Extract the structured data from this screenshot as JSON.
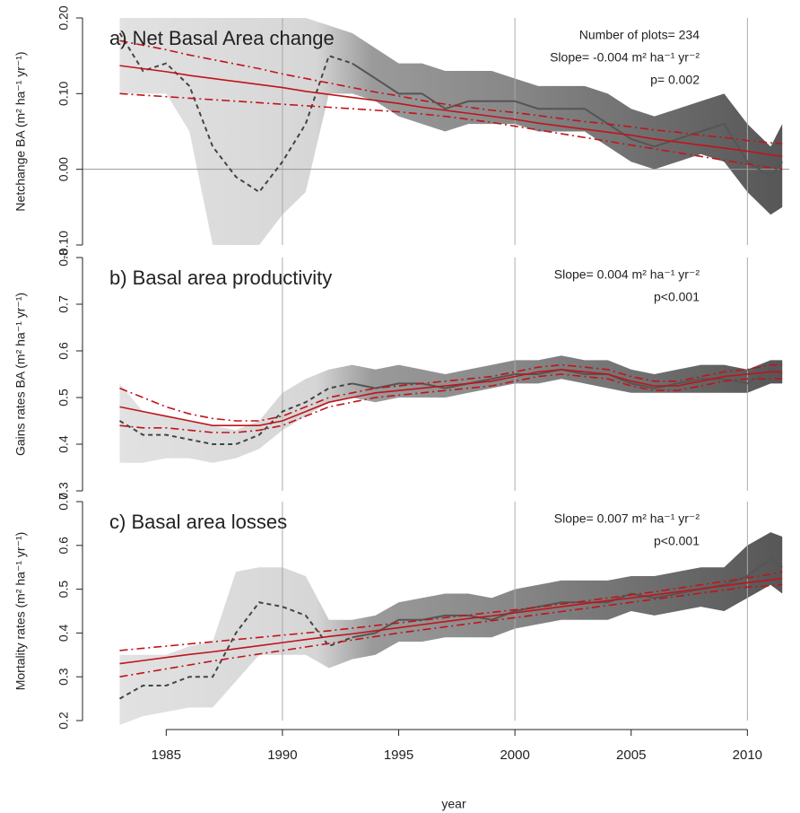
{
  "chart_data": [
    {
      "type": "line",
      "title": "a) Net Basal Area change",
      "ylabel": "Netchange BA (m² ha⁻¹ yr⁻¹)",
      "annotations": [
        "Number of plots= 234",
        "Slope= -0.004 m² ha⁻¹ yr⁻²",
        "p= 0.002"
      ],
      "x": [
        1983,
        1984,
        1985,
        1986,
        1987,
        1988,
        1989,
        1990,
        1991,
        1992,
        1993,
        1994,
        1995,
        1996,
        1997,
        1998,
        1999,
        2000,
        2001,
        2002,
        2003,
        2004,
        2005,
        2006,
        2007,
        2008,
        2009,
        2010,
        2011,
        2011.5
      ],
      "xlim": [
        1981.4,
        2011.8
      ],
      "ylim": [
        -0.1,
        0.2
      ],
      "yticks": [
        {
          "value": -0.1,
          "label": "-0.10"
        },
        {
          "value": 0,
          "label": "0.00"
        },
        {
          "value": 0.1,
          "label": "0.10"
        },
        {
          "value": 0.2,
          "label": "0.20"
        }
      ],
      "vlines": [
        1990,
        2000,
        2010
      ],
      "hline": 0,
      "band": {
        "lower": [
          0.1,
          0.1,
          0.1,
          0.05,
          -0.1,
          -0.1,
          -0.1,
          -0.06,
          -0.03,
          0.1,
          0.1,
          0.09,
          0.07,
          0.06,
          0.05,
          0.06,
          0.06,
          0.06,
          0.05,
          0.05,
          0.05,
          0.03,
          0.01,
          0.0,
          0.01,
          0.02,
          0.01,
          -0.03,
          -0.06,
          -0.05
        ],
        "upper": [
          0.2,
          0.2,
          0.2,
          0.2,
          0.2,
          0.2,
          0.2,
          0.2,
          0.2,
          0.19,
          0.18,
          0.16,
          0.14,
          0.14,
          0.13,
          0.13,
          0.13,
          0.12,
          0.11,
          0.11,
          0.11,
          0.1,
          0.08,
          0.07,
          0.08,
          0.09,
          0.1,
          0.06,
          0.03,
          0.06
        ]
      },
      "series": [
        {
          "color": "#444444",
          "dash": "dashed",
          "values": [
            0.18,
            0.13,
            0.14,
            0.11,
            0.03,
            -0.01,
            -0.03,
            0.01,
            0.06,
            0.15,
            0.14,
            null,
            null,
            null,
            null,
            null,
            null,
            null,
            null,
            null,
            null,
            null,
            null,
            null,
            null,
            null,
            null,
            null,
            null,
            null
          ]
        },
        {
          "color": "#555555",
          "dash": "solid",
          "values": [
            null,
            null,
            null,
            null,
            null,
            null,
            null,
            null,
            null,
            null,
            0.14,
            0.12,
            0.1,
            0.1,
            0.08,
            0.09,
            0.09,
            0.09,
            0.08,
            0.08,
            0.08,
            0.06,
            0.04,
            0.03,
            0.04,
            0.05,
            0.06,
            0.01,
            -0.01,
            0.01
          ]
        },
        {
          "color": "#c0141b",
          "dash": "solid",
          "values": [
            0.137,
            0.133,
            0.129,
            0.124,
            0.12,
            0.116,
            0.112,
            0.108,
            0.103,
            0.099,
            0.095,
            0.091,
            0.087,
            0.082,
            0.078,
            0.074,
            0.07,
            0.066,
            0.061,
            0.057,
            0.053,
            0.049,
            0.045,
            0.04,
            0.036,
            0.032,
            0.028,
            0.024,
            0.019,
            0.017
          ]
        },
        {
          "color": "#c0141b",
          "dash": "dashdot",
          "values": [
            0.17,
            0.164,
            0.158,
            0.151,
            0.145,
            0.139,
            0.133,
            0.126,
            0.12,
            0.114,
            0.108,
            0.102,
            0.097,
            0.091,
            0.086,
            0.082,
            0.078,
            0.075,
            0.071,
            0.067,
            0.063,
            0.06,
            0.056,
            0.052,
            0.049,
            0.045,
            0.042,
            0.038,
            0.035,
            0.034
          ]
        },
        {
          "color": "#c0141b",
          "dash": "dashdot",
          "values": [
            0.1,
            0.098,
            0.096,
            0.094,
            0.092,
            0.09,
            0.088,
            0.086,
            0.084,
            0.082,
            0.08,
            0.078,
            0.076,
            0.073,
            0.07,
            0.066,
            0.062,
            0.057,
            0.052,
            0.047,
            0.042,
            0.037,
            0.032,
            0.027,
            0.022,
            0.017,
            0.012,
            0.007,
            0.002,
            0.0
          ]
        }
      ]
    },
    {
      "type": "line",
      "title": "b) Basal area productivity",
      "ylabel": "Gains rates BA (m² ha⁻¹ yr⁻¹)",
      "annotations": [
        "Slope= 0.004 m² ha⁻¹ yr⁻²",
        "p<0.001"
      ],
      "x": [
        1983,
        1984,
        1985,
        1986,
        1987,
        1988,
        1989,
        1990,
        1991,
        1992,
        1993,
        1994,
        1995,
        1996,
        1997,
        1998,
        1999,
        2000,
        2001,
        2002,
        2003,
        2004,
        2005,
        2006,
        2007,
        2008,
        2009,
        2010,
        2011,
        2011.5
      ],
      "xlim": [
        1981.4,
        2011.8
      ],
      "ylim": [
        0.3,
        0.8
      ],
      "yticks": [
        0.3,
        0.4,
        0.5,
        0.6,
        0.7,
        0.8
      ],
      "vlines": [
        1990,
        2000,
        2010
      ],
      "band": {
        "lower": [
          0.36,
          0.36,
          0.37,
          0.37,
          0.36,
          0.37,
          0.39,
          0.43,
          0.46,
          0.49,
          0.5,
          0.49,
          0.5,
          0.5,
          0.5,
          0.51,
          0.52,
          0.53,
          0.53,
          0.54,
          0.53,
          0.52,
          0.51,
          0.51,
          0.51,
          0.51,
          0.51,
          0.51,
          0.53,
          0.53
        ],
        "upper": [
          0.53,
          0.47,
          0.46,
          0.45,
          0.44,
          0.43,
          0.45,
          0.51,
          0.54,
          0.56,
          0.57,
          0.56,
          0.57,
          0.56,
          0.55,
          0.56,
          0.57,
          0.58,
          0.58,
          0.59,
          0.58,
          0.58,
          0.56,
          0.55,
          0.56,
          0.57,
          0.57,
          0.56,
          0.58,
          0.58
        ]
      },
      "series": [
        {
          "color": "#444444",
          "dash": "dashed",
          "values": [
            0.45,
            0.42,
            0.42,
            0.41,
            0.4,
            0.4,
            0.42,
            0.47,
            0.49,
            0.52,
            0.53,
            null,
            null,
            null,
            null,
            null,
            null,
            null,
            null,
            null,
            null,
            null,
            null,
            null,
            null,
            null,
            null,
            null,
            null,
            null
          ]
        },
        {
          "color": "#555555",
          "dash": "solid",
          "values": [
            null,
            null,
            null,
            null,
            null,
            null,
            null,
            null,
            null,
            null,
            0.53,
            0.52,
            0.53,
            0.53,
            0.52,
            0.53,
            0.54,
            0.55,
            0.55,
            0.56,
            0.55,
            0.55,
            0.53,
            0.52,
            0.53,
            0.54,
            0.54,
            0.53,
            0.56,
            0.55
          ]
        },
        {
          "color": "#c0141b",
          "dash": "solid",
          "values": [
            0.48,
            0.47,
            0.46,
            0.45,
            0.44,
            0.44,
            0.44,
            0.45,
            0.47,
            0.49,
            0.5,
            0.51,
            0.515,
            0.52,
            0.525,
            0.53,
            0.535,
            0.545,
            0.555,
            0.56,
            0.555,
            0.55,
            0.535,
            0.525,
            0.525,
            0.535,
            0.545,
            0.55,
            0.555,
            0.555
          ]
        },
        {
          "color": "#c0141b",
          "dash": "dashdot",
          "values": [
            0.52,
            0.5,
            0.48,
            0.465,
            0.455,
            0.45,
            0.45,
            0.46,
            0.48,
            0.5,
            0.51,
            0.52,
            0.525,
            0.53,
            0.535,
            0.54,
            0.545,
            0.555,
            0.565,
            0.57,
            0.565,
            0.56,
            0.545,
            0.535,
            0.535,
            0.545,
            0.555,
            0.56,
            0.57,
            0.57
          ]
        },
        {
          "color": "#c0141b",
          "dash": "dashdot",
          "values": [
            0.44,
            0.435,
            0.435,
            0.43,
            0.425,
            0.425,
            0.43,
            0.44,
            0.46,
            0.48,
            0.49,
            0.5,
            0.505,
            0.51,
            0.515,
            0.52,
            0.525,
            0.535,
            0.545,
            0.55,
            0.545,
            0.54,
            0.525,
            0.515,
            0.515,
            0.525,
            0.535,
            0.54,
            0.54,
            0.54
          ]
        }
      ]
    },
    {
      "type": "line",
      "title": "c) Basal area losses",
      "ylabel": "Mortality rates (m² ha⁻¹ yr⁻¹)",
      "xlabel": "year",
      "annotations": [
        "Slope= 0.007 m² ha⁻¹ yr⁻²",
        "p<0.001"
      ],
      "x": [
        1983,
        1984,
        1985,
        1986,
        1987,
        1988,
        1989,
        1990,
        1991,
        1992,
        1993,
        1994,
        1995,
        1996,
        1997,
        1998,
        1999,
        2000,
        2001,
        2002,
        2003,
        2004,
        2005,
        2006,
        2007,
        2008,
        2009,
        2010,
        2011,
        2011.5
      ],
      "xlim": [
        1981.4,
        2011.8
      ],
      "ylim": [
        0.2,
        0.7
      ],
      "xticks": [
        1985,
        1990,
        1995,
        2000,
        2005,
        2010
      ],
      "yticks": [
        0.2,
        0.3,
        0.4,
        0.5,
        0.6,
        0.7
      ],
      "vlines": [
        1990,
        2000,
        2010
      ],
      "band": {
        "lower": [
          0.19,
          0.21,
          0.22,
          0.23,
          0.23,
          0.29,
          0.35,
          0.35,
          0.35,
          0.32,
          0.34,
          0.35,
          0.38,
          0.38,
          0.39,
          0.39,
          0.39,
          0.41,
          0.42,
          0.43,
          0.43,
          0.43,
          0.45,
          0.44,
          0.45,
          0.46,
          0.45,
          0.48,
          0.51,
          0.49
        ],
        "upper": [
          0.35,
          0.35,
          0.35,
          0.37,
          0.38,
          0.54,
          0.55,
          0.55,
          0.53,
          0.43,
          0.43,
          0.44,
          0.47,
          0.48,
          0.49,
          0.49,
          0.48,
          0.5,
          0.51,
          0.52,
          0.52,
          0.52,
          0.53,
          0.53,
          0.54,
          0.55,
          0.55,
          0.6,
          0.63,
          0.62
        ]
      },
      "series": [
        {
          "color": "#444444",
          "dash": "dashed",
          "values": [
            0.25,
            0.28,
            0.28,
            0.3,
            0.3,
            0.4,
            0.47,
            0.46,
            0.44,
            0.37,
            0.39,
            null,
            null,
            null,
            null,
            null,
            null,
            null,
            null,
            null,
            null,
            null,
            null,
            null,
            null,
            null,
            null,
            null,
            null,
            null
          ]
        },
        {
          "color": "#555555",
          "dash": "solid",
          "values": [
            null,
            null,
            null,
            null,
            null,
            null,
            null,
            null,
            null,
            null,
            0.39,
            0.4,
            0.43,
            0.43,
            0.44,
            0.44,
            0.43,
            0.45,
            0.46,
            0.47,
            0.47,
            0.47,
            0.49,
            0.48,
            0.49,
            0.5,
            0.51,
            0.53,
            0.57,
            0.55
          ]
        },
        {
          "color": "#c0141b",
          "dash": "solid",
          "values": [
            0.33,
            0.337,
            0.344,
            0.351,
            0.357,
            0.364,
            0.371,
            0.378,
            0.385,
            0.392,
            0.398,
            0.405,
            0.412,
            0.419,
            0.426,
            0.433,
            0.439,
            0.446,
            0.453,
            0.46,
            0.467,
            0.474,
            0.48,
            0.487,
            0.494,
            0.501,
            0.508,
            0.515,
            0.521,
            0.525
          ]
        },
        {
          "color": "#c0141b",
          "dash": "dashdot",
          "values": [
            0.36,
            0.365,
            0.37,
            0.375,
            0.38,
            0.385,
            0.39,
            0.395,
            0.4,
            0.405,
            0.411,
            0.417,
            0.423,
            0.429,
            0.435,
            0.441,
            0.447,
            0.453,
            0.459,
            0.466,
            0.473,
            0.48,
            0.487,
            0.494,
            0.502,
            0.51,
            0.518,
            0.526,
            0.534,
            0.54
          ]
        },
        {
          "color": "#c0141b",
          "dash": "dashdot",
          "values": [
            0.3,
            0.309,
            0.318,
            0.327,
            0.336,
            0.344,
            0.352,
            0.36,
            0.368,
            0.376,
            0.384,
            0.392,
            0.4,
            0.407,
            0.414,
            0.421,
            0.428,
            0.435,
            0.442,
            0.449,
            0.456,
            0.463,
            0.47,
            0.477,
            0.484,
            0.491,
            0.498,
            0.505,
            0.508,
            0.51
          ]
        }
      ]
    }
  ]
}
